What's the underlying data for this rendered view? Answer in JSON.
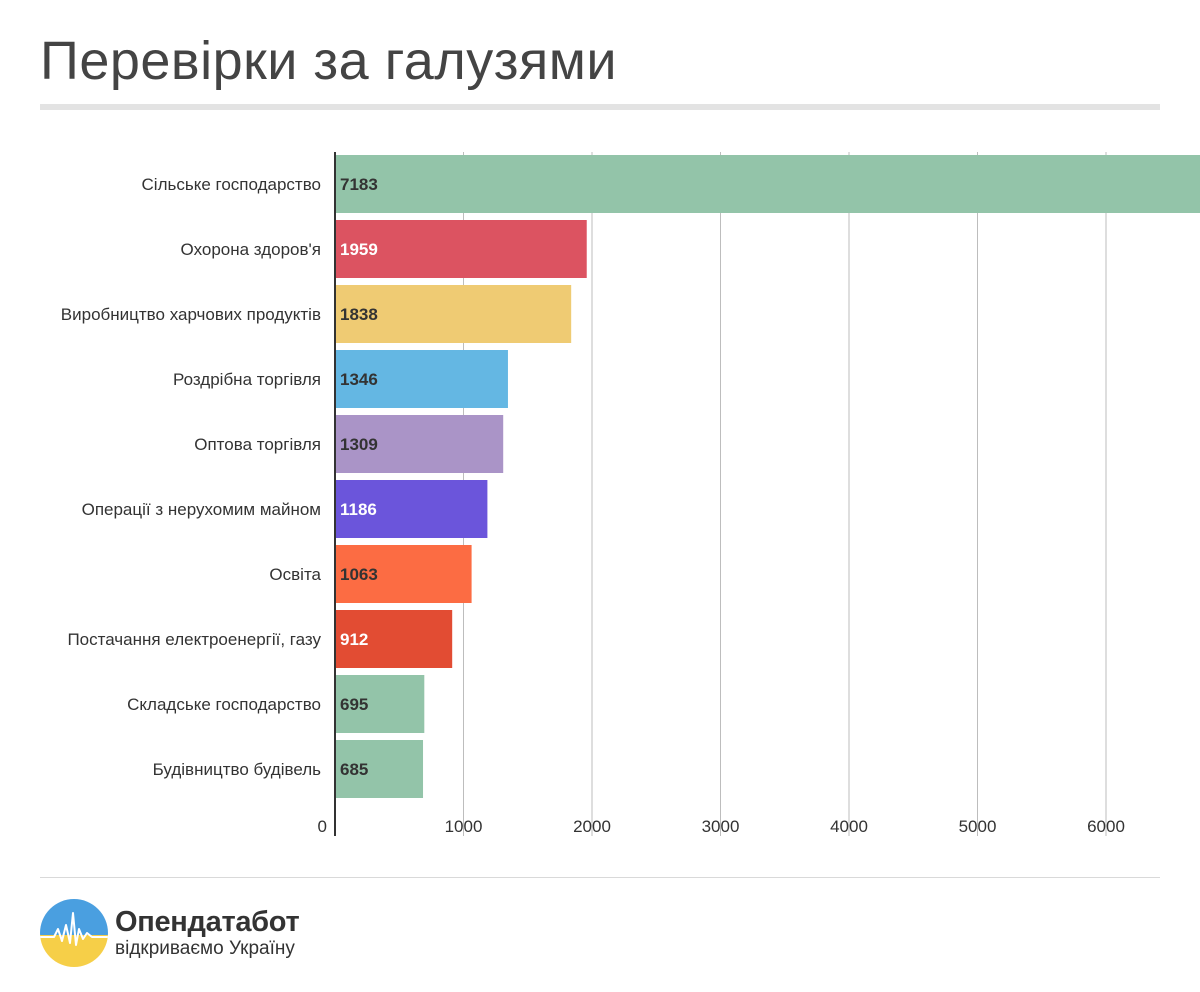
{
  "title": "Перевірки за галузями",
  "brand": {
    "name": "Опендатабот",
    "tagline": "відкриваємо Україну",
    "colors": {
      "blue": "#4a9fe0",
      "yellow": "#f6cf48",
      "pulse": "#ffffff"
    }
  },
  "chart_data": {
    "type": "bar",
    "orientation": "horizontal",
    "title": "Перевірки за галузями",
    "categories": [
      "Сільське господарство",
      "Охорона здоров'я",
      "Виробництво харчових продуктів",
      "Роздрібна торгівля",
      "Оптова торгівля",
      "Операції з нерухомим майном",
      "Освіта",
      "Постачання електроенергії, газу",
      "Складське господарство",
      "Будівництво будівель"
    ],
    "values": [
      7183,
      1959,
      1838,
      1346,
      1309,
      1186,
      1063,
      912,
      695,
      685
    ],
    "colors": [
      "#93c4a9",
      "#dc5361",
      "#efcb73",
      "#64b7e3",
      "#aa94c7",
      "#6b55db",
      "#fc6c43",
      "#e24c33",
      "#93c4a9",
      "#93c4a9"
    ],
    "label_colors": [
      "#333333",
      "#ffffff",
      "#333333",
      "#333333",
      "#333333",
      "#ffffff",
      "#333333",
      "#ffffff",
      "#333333",
      "#333333"
    ],
    "xlim": [
      0,
      8000
    ],
    "xticks": [
      0,
      1000,
      2000,
      3000,
      4000,
      5000,
      6000,
      7000,
      8000
    ],
    "xlabel": "",
    "ylabel": "",
    "grid": true,
    "legend": "none"
  }
}
